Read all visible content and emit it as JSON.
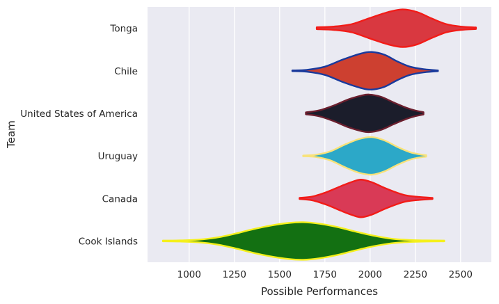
{
  "chart_data": {
    "type": "violin",
    "orientation": "horizontal",
    "xlabel": "Possible Performances",
    "ylabel": "Team",
    "xlim": [
      770,
      2670
    ],
    "xticks": [
      1000,
      1250,
      1500,
      1750,
      2000,
      2250,
      2500
    ],
    "grid": true,
    "background": "#eaeaf2",
    "gridColor": "#ffffff",
    "series": [
      {
        "name": "Tonga",
        "fill": "#d93840",
        "stroke": "#f21c18",
        "min": 1705,
        "max": 2585,
        "profile": [
          [
            1705,
            0.05
          ],
          [
            1800,
            0.09
          ],
          [
            1900,
            0.22
          ],
          [
            2000,
            0.55
          ],
          [
            2100,
            0.86
          ],
          [
            2180,
            1.0
          ],
          [
            2260,
            0.86
          ],
          [
            2340,
            0.52
          ],
          [
            2420,
            0.22
          ],
          [
            2500,
            0.09
          ],
          [
            2585,
            0.04
          ]
        ]
      },
      {
        "name": "Chile",
        "fill": "#cd4030",
        "stroke": "#1a3a9c",
        "min": 1570,
        "max": 2375,
        "profile": [
          [
            1570,
            0.02
          ],
          [
            1650,
            0.05
          ],
          [
            1750,
            0.22
          ],
          [
            1850,
            0.6
          ],
          [
            1950,
            0.92
          ],
          [
            2010,
            1.0
          ],
          [
            2080,
            0.85
          ],
          [
            2150,
            0.5
          ],
          [
            2220,
            0.22
          ],
          [
            2300,
            0.08
          ],
          [
            2375,
            0.02
          ]
        ]
      },
      {
        "name": "United States of America",
        "fill": "#1b1d2b",
        "stroke": "#6b1f2e",
        "min": 1645,
        "max": 2295,
        "profile": [
          [
            1645,
            0.05
          ],
          [
            1720,
            0.16
          ],
          [
            1800,
            0.42
          ],
          [
            1880,
            0.74
          ],
          [
            1950,
            0.94
          ],
          [
            1995,
            1.0
          ],
          [
            2060,
            0.88
          ],
          [
            2130,
            0.58
          ],
          [
            2200,
            0.3
          ],
          [
            2250,
            0.15
          ],
          [
            2295,
            0.06
          ]
        ]
      },
      {
        "name": "Uruguay",
        "fill": "#2ca8c8",
        "stroke": "#f8e27a",
        "min": 1630,
        "max": 2310,
        "profile": [
          [
            1630,
            0.02
          ],
          [
            1700,
            0.06
          ],
          [
            1780,
            0.24
          ],
          [
            1860,
            0.6
          ],
          [
            1940,
            0.9
          ],
          [
            2010,
            1.0
          ],
          [
            2080,
            0.82
          ],
          [
            2150,
            0.48
          ],
          [
            2220,
            0.2
          ],
          [
            2270,
            0.09
          ],
          [
            2310,
            0.04
          ]
        ]
      },
      {
        "name": "Canada",
        "fill": "#d93a56",
        "stroke": "#f21c18",
        "min": 1610,
        "max": 2345,
        "profile": [
          [
            1610,
            0.03
          ],
          [
            1680,
            0.1
          ],
          [
            1760,
            0.34
          ],
          [
            1840,
            0.66
          ],
          [
            1900,
            0.88
          ],
          [
            1950,
            1.0
          ],
          [
            2010,
            0.86
          ],
          [
            2080,
            0.56
          ],
          [
            2150,
            0.3
          ],
          [
            2200,
            0.16
          ],
          [
            2270,
            0.08
          ],
          [
            2345,
            0.03
          ]
        ]
      },
      {
        "name": "Cook Islands",
        "fill": "#137012",
        "stroke": "#f5f01c",
        "min": 855,
        "max": 2410,
        "profile": [
          [
            855,
            0.02
          ],
          [
            950,
            0.03
          ],
          [
            1050,
            0.07
          ],
          [
            1150,
            0.18
          ],
          [
            1250,
            0.38
          ],
          [
            1350,
            0.62
          ],
          [
            1450,
            0.82
          ],
          [
            1550,
            0.96
          ],
          [
            1630,
            1.0
          ],
          [
            1720,
            0.92
          ],
          [
            1820,
            0.74
          ],
          [
            1920,
            0.5
          ],
          [
            2020,
            0.28
          ],
          [
            2120,
            0.12
          ],
          [
            2220,
            0.05
          ],
          [
            2310,
            0.03
          ],
          [
            2410,
            0.02
          ]
        ]
      }
    ]
  }
}
